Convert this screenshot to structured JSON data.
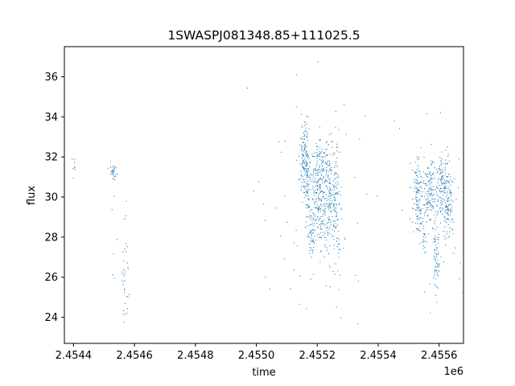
{
  "chart_data": {
    "type": "scatter",
    "title": "1SWASPJ081348.85+111025.5",
    "xlabel": "time",
    "ylabel": "flux",
    "x_offset_label": "1e6",
    "xlim": [
      2.45437,
      2.45568
    ],
    "ylim": [
      22.7,
      37.5
    ],
    "x_ticks": [
      2.4544,
      2.4546,
      2.4548,
      2.455,
      2.4552,
      2.4554,
      2.4556
    ],
    "x_tick_labels": [
      "2.4544",
      "2.4546",
      "2.4548",
      "2.4550",
      "2.4552",
      "2.4554",
      "2.4556"
    ],
    "y_ticks": [
      24,
      26,
      28,
      30,
      32,
      34,
      36
    ],
    "y_tick_labels": [
      "24",
      "26",
      "28",
      "30",
      "32",
      "34",
      "36"
    ],
    "marker_color": "#1f77b4",
    "grid": false,
    "clusters": [
      {
        "x": 2.4544,
        "dx": 4e-06,
        "y": 31.6,
        "dy": 0.4,
        "n": 8
      },
      {
        "x": 2.45453,
        "dx": 6e-06,
        "y": 31.2,
        "dy": 0.25,
        "n": 30
      },
      {
        "x": 2.45453,
        "dx": 6e-06,
        "y": 29.8,
        "dy": 1.8,
        "n": 8
      },
      {
        "x": 2.45457,
        "dx": 6e-06,
        "y": 25.5,
        "dy": 1.0,
        "n": 30
      },
      {
        "x": 2.45457,
        "dx": 6e-06,
        "y": 28.0,
        "dy": 1.8,
        "n": 6
      },
      {
        "x": 2.45516,
        "dx": 8e-06,
        "y": 31.8,
        "dy": 0.9,
        "n": 150
      },
      {
        "x": 2.45517,
        "dx": 6e-06,
        "y": 30.0,
        "dy": 1.3,
        "n": 50
      },
      {
        "x": 2.45518,
        "dx": 5e-06,
        "y": 28.1,
        "dy": 0.6,
        "n": 45
      },
      {
        "x": 2.4552,
        "dx": 1e-05,
        "y": 30.5,
        "dy": 1.2,
        "n": 140
      },
      {
        "x": 2.45522,
        "dx": 1e-05,
        "y": 30.0,
        "dy": 1.6,
        "n": 140
      },
      {
        "x": 2.45524,
        "dx": 8e-06,
        "y": 30.4,
        "dy": 1.4,
        "n": 90
      },
      {
        "x": 2.45526,
        "dx": 1e-05,
        "y": 29.6,
        "dy": 1.6,
        "n": 130
      },
      {
        "x": 2.45519,
        "dx": 0.0001,
        "y": 30.0,
        "dy": 3.2,
        "n": 60
      },
      {
        "x": 2.45553,
        "dx": 1e-05,
        "y": 30.0,
        "dy": 1.0,
        "n": 130
      },
      {
        "x": 2.45555,
        "dx": 5e-06,
        "y": 27.8,
        "dy": 0.4,
        "n": 20
      },
      {
        "x": 2.45557,
        "dx": 1e-05,
        "y": 30.4,
        "dy": 0.8,
        "n": 120
      },
      {
        "x": 2.45559,
        "dx": 6e-06,
        "y": 27.0,
        "dy": 0.9,
        "n": 70
      },
      {
        "x": 2.45561,
        "dx": 1e-05,
        "y": 30.6,
        "dy": 0.8,
        "n": 110
      },
      {
        "x": 2.45563,
        "dx": 1e-05,
        "y": 29.8,
        "dy": 1.0,
        "n": 110
      },
      {
        "x": 2.45558,
        "dx": 6e-05,
        "y": 30.0,
        "dy": 3.0,
        "n": 40
      }
    ]
  }
}
